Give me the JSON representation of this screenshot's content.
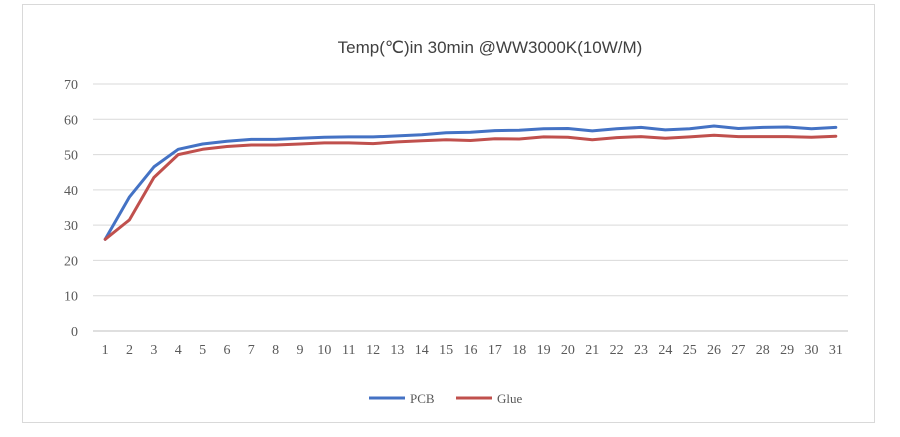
{
  "chart_data": {
    "type": "line",
    "title": "Temp(℃)in 30min @WW3000K(10W/M)",
    "xlabel": "",
    "ylabel": "",
    "categories": [
      "1",
      "2",
      "3",
      "4",
      "5",
      "6",
      "7",
      "8",
      "9",
      "10",
      "11",
      "12",
      "13",
      "14",
      "15",
      "16",
      "17",
      "18",
      "19",
      "20",
      "21",
      "22",
      "23",
      "24",
      "25",
      "26",
      "27",
      "28",
      "29",
      "30",
      "31"
    ],
    "ylim": [
      0,
      70
    ],
    "yticks": [
      "0",
      "10",
      "20",
      "30",
      "40",
      "50",
      "60",
      "70"
    ],
    "grid": true,
    "legend_position": "bottom",
    "series": [
      {
        "name": "PCB",
        "color": "#4472c4",
        "values": [
          26.0,
          38.0,
          46.5,
          51.5,
          53.0,
          53.8,
          54.3,
          54.3,
          54.6,
          54.9,
          55.0,
          55.0,
          55.3,
          55.6,
          56.2,
          56.3,
          56.8,
          56.9,
          57.3,
          57.4,
          56.7,
          57.3,
          57.7,
          57.0,
          57.3,
          58.1,
          57.4,
          57.7,
          57.8,
          57.3,
          57.7
        ]
      },
      {
        "name": "Glue",
        "color": "#c0504d",
        "values": [
          26.0,
          31.5,
          43.5,
          50.0,
          51.5,
          52.3,
          52.7,
          52.7,
          53.0,
          53.3,
          53.3,
          53.1,
          53.6,
          53.9,
          54.2,
          54.0,
          54.5,
          54.4,
          55.0,
          54.9,
          54.2,
          54.8,
          55.1,
          54.6,
          55.0,
          55.5,
          55.1,
          55.1,
          55.1,
          54.9,
          55.2
        ]
      }
    ]
  }
}
